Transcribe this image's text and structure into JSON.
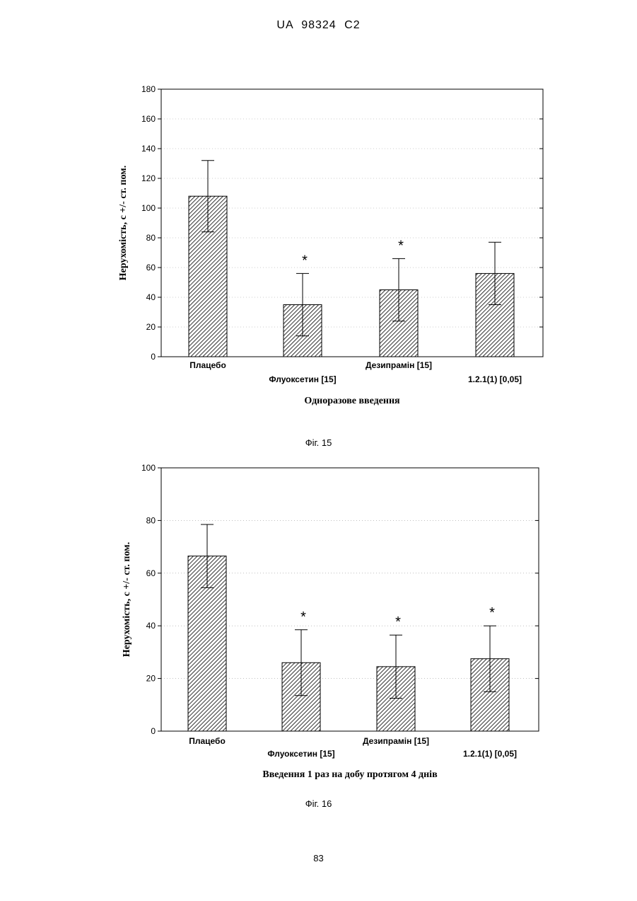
{
  "header": "UA 98324 C2",
  "page_number": "83",
  "chart_data": [
    {
      "type": "bar",
      "caption": "Фіг. 15",
      "ylabel": "Нерухомість, с +/- ст. пом.",
      "xlabel": "Одноразове введення",
      "ylim": [
        0,
        180
      ],
      "yticks": [
        0,
        20,
        40,
        60,
        80,
        100,
        120,
        140,
        160,
        180
      ],
      "grid": true,
      "categories": [
        "Плацебо",
        "Флуоксетин [15]",
        "Дезипрамін [15]",
        "1.2.1(1) [0,05]"
      ],
      "values": [
        108,
        35,
        45,
        56
      ],
      "errors": [
        24,
        21,
        21,
        21
      ],
      "significant": [
        false,
        true,
        true,
        false
      ],
      "annotation": "*"
    },
    {
      "type": "bar",
      "caption": "Фіг. 16",
      "ylabel": "Нерухомість, с +/- ст. пом.",
      "xlabel": "Введення 1 раз на добу протягом 4 днів",
      "ylim": [
        0,
        100
      ],
      "yticks": [
        0,
        20,
        40,
        60,
        80,
        100
      ],
      "grid": true,
      "categories": [
        "Плацебо",
        "Флуоксетин [15]",
        "Дезипрамін [15]",
        "1.2.1(1) [0,05]"
      ],
      "values": [
        66.5,
        26,
        24.5,
        27.5
      ],
      "errors": [
        12,
        12.5,
        12,
        12.5
      ],
      "significant": [
        false,
        true,
        true,
        true
      ],
      "annotation": "*"
    }
  ]
}
